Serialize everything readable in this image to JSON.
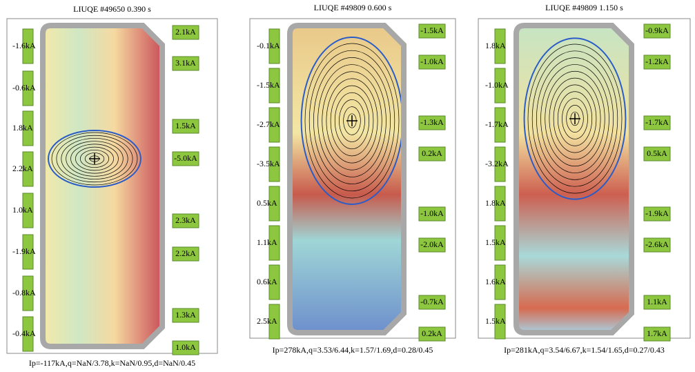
{
  "panels": [
    {
      "title": "LIUQE #49650 0.390 s",
      "left_coils": [
        "-1.6kA",
        "-0.6kA",
        "1.8kA",
        "2.2kA",
        "1.0kA",
        "-1.9kA",
        "-0.8kA",
        "-0.4kA"
      ],
      "right_coils": [
        "2.1kA",
        "3.1kA",
        "1.5kA",
        "-5.0kA",
        "2.3kA",
        "2.2kA",
        "1.3kA",
        "1.0kA"
      ],
      "footer": "Ip=-117kA,q=NaN/3.78,k=NaN/0.95,d=NaN/0.45"
    },
    {
      "title": "LIUQE #49809 0.600 s",
      "left_coils": [
        "-0.1kA",
        "-1.5kA",
        "-2.7kA",
        "-3.5kA",
        "0.5kA",
        "1.1kA",
        "0.6kA",
        "2.5kA"
      ],
      "right_coils": [
        "-1.5kA",
        "-1.0kA",
        "-1.3kA",
        "0.2kA",
        "-1.0kA",
        "-2.0kA",
        "-0.7kA",
        "0.2kA"
      ],
      "footer": "Ip=278kA,q=3.53/6.44,k=1.57/1.69,d=0.28/0.45"
    },
    {
      "title": "LIUQE #49809 1.150 s",
      "left_coils": [
        "1.8kA",
        "-1.0kA",
        "-1.7kA",
        "-3.2kA",
        "1.8kA",
        "1.5kA",
        "1.6kA",
        "1.5kA"
      ],
      "right_coils": [
        "-0.9kA",
        "-1.2kA",
        "-1.7kA",
        "0.5kA",
        "-1.9kA",
        "-2.6kA",
        "1.1kA",
        "1.7kA"
      ],
      "footer": "Ip=281kA,q=3.54/6.67,k=1.54/1.65,d=0.27/0.43"
    }
  ]
}
